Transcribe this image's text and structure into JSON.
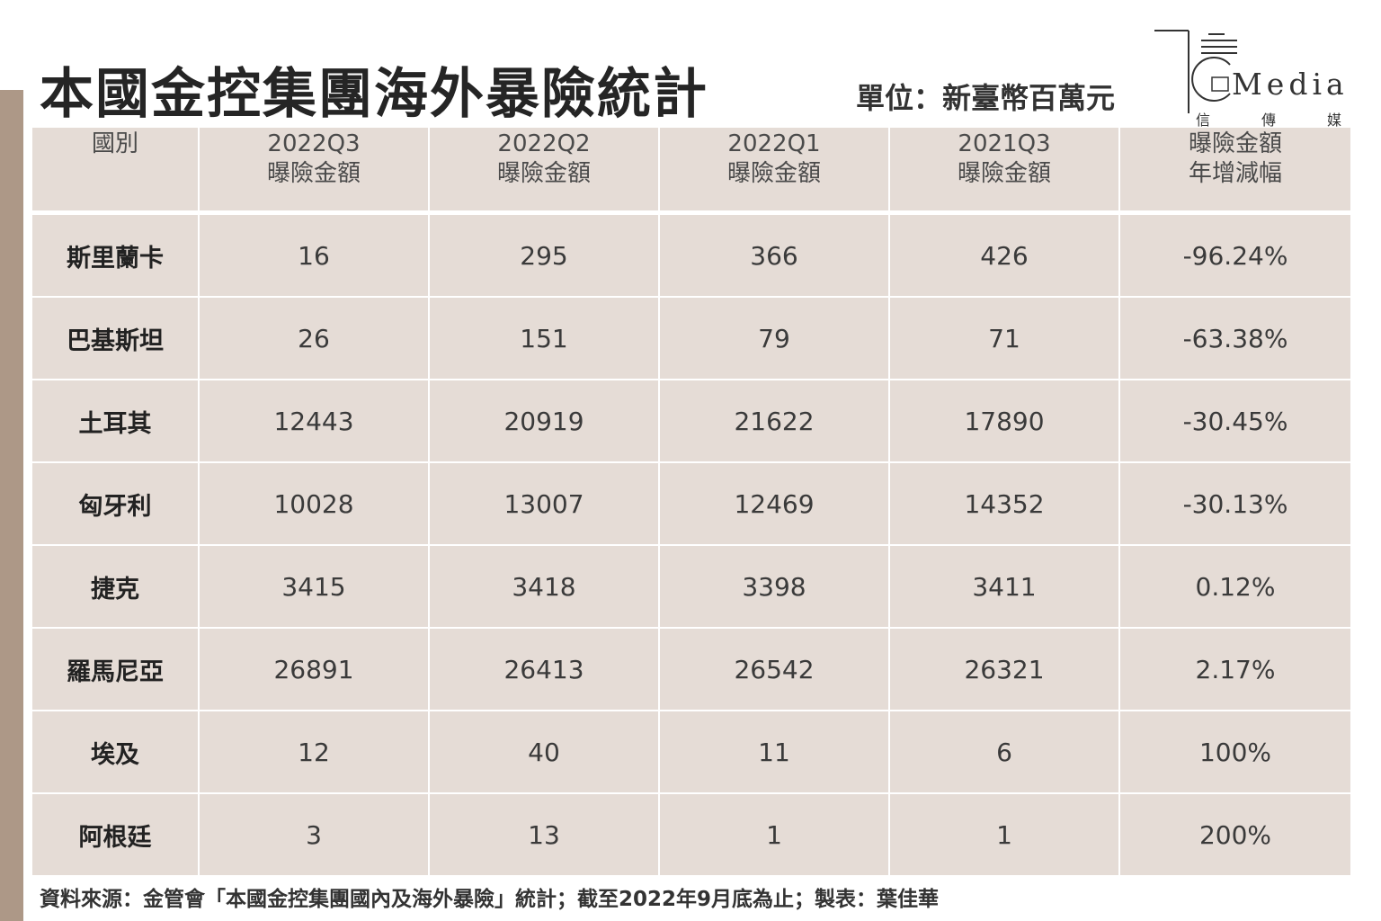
{
  "title": "本國金控集團海外暴險統計",
  "unit": "單位：新臺幣百萬元",
  "logo": {
    "brand": "Media",
    "chinese": [
      "信",
      "傳",
      "媒"
    ]
  },
  "table": {
    "headers": [
      {
        "line1": "國別",
        "line2": ""
      },
      {
        "line1": "2022Q3",
        "line2": "曝險金額"
      },
      {
        "line1": "2022Q2",
        "line2": "曝險金額"
      },
      {
        "line1": "2022Q1",
        "line2": "曝險金額"
      },
      {
        "line1": "2021Q3",
        "line2": "曝險金額"
      },
      {
        "line1": "曝險金額",
        "line2": "年增減幅"
      }
    ],
    "rows": [
      [
        "斯里蘭卡",
        "16",
        "295",
        "366",
        "426",
        "-96.24%"
      ],
      [
        "巴基斯坦",
        "26",
        "151",
        "79",
        "71",
        "-63.38%"
      ],
      [
        "土耳其",
        "12443",
        "20919",
        "21622",
        "17890",
        "-30.45%"
      ],
      [
        "匈牙利",
        "10028",
        "13007",
        "12469",
        "14352",
        "-30.13%"
      ],
      [
        "捷克",
        "3415",
        "3418",
        "3398",
        "3411",
        "0.12%"
      ],
      [
        "羅馬尼亞",
        "26891",
        "26413",
        "26542",
        "26321",
        "2.17%"
      ],
      [
        "埃及",
        "12",
        "40",
        "11",
        "6",
        "100%"
      ],
      [
        "阿根廷",
        "3",
        "13",
        "1",
        "1",
        "200%"
      ]
    ]
  },
  "source": "資料來源：金管會「本國金控集團國內及海外暴險」統計；截至2022年9月底為止；製表：葉佳華",
  "colors": {
    "accent_bar": "#ad9887",
    "table_bg": "#e5dcd6"
  }
}
